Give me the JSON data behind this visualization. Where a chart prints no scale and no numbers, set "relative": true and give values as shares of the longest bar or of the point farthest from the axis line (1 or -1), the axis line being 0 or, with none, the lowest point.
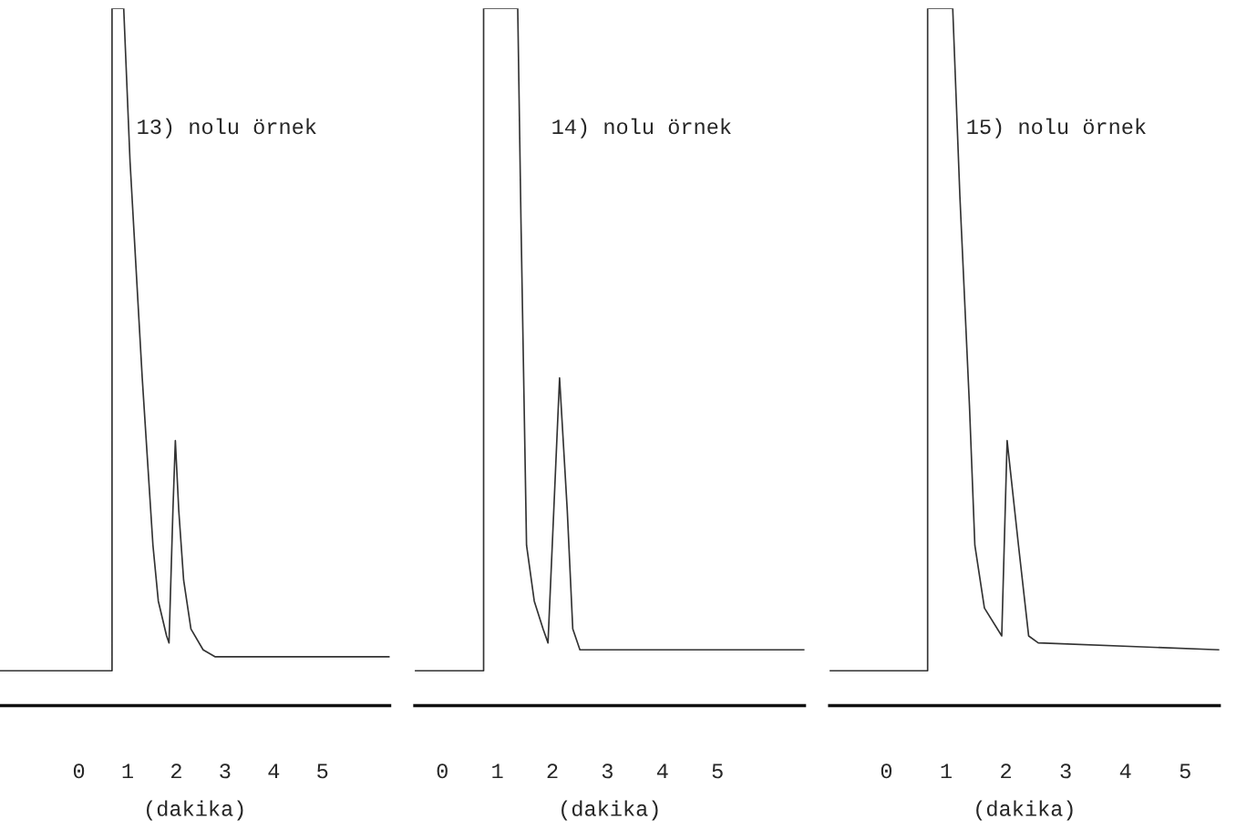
{
  "chart_data": [
    {
      "type": "line",
      "title": "13) nolu örnek",
      "xlabel": "(dakika)",
      "relative": true,
      "xlim": [
        -1.62,
        6.38
      ],
      "xticks": [
        0,
        1,
        2,
        3,
        4,
        5
      ],
      "tick_labels": "x",
      "grid": false,
      "legend": false,
      "series": [
        {
          "color": "#333333",
          "x": [
            -1.62,
            0.68,
            0.68,
            0.92,
            1.05,
            1.3,
            1.52,
            1.63,
            1.8,
            1.85,
            1.93,
            1.98,
            2.05,
            2.15,
            2.3,
            2.55,
            2.8,
            6.38
          ],
          "values": [
            0.05,
            0.05,
            1,
            1,
            0.78,
            0.47,
            0.23,
            0.15,
            0.1,
            0.09,
            0.28,
            0.38,
            0.28,
            0.18,
            0.11,
            0.08,
            0.07,
            0.07
          ]
        }
      ]
    },
    {
      "type": "line",
      "title": "14) nolu örnek",
      "xlabel": "(dakika)",
      "relative": true,
      "xlim": [
        -0.5,
        6.58
      ],
      "xticks": [
        0,
        1,
        2,
        3,
        4,
        5
      ],
      "tick_labels": "x",
      "grid": false,
      "legend": false,
      "series": [
        {
          "color": "#333333",
          "x": [
            -0.5,
            0.75,
            0.75,
            1.37,
            1.43,
            1.53,
            1.67,
            1.83,
            1.92,
            2.13,
            2.27,
            2.37,
            2.5,
            2.75,
            6.58
          ],
          "values": [
            0.05,
            0.05,
            1,
            1,
            0.69,
            0.23,
            0.15,
            0.11,
            0.09,
            0.47,
            0.28,
            0.11,
            0.08,
            0.08,
            0.08
          ]
        }
      ]
    },
    {
      "type": "line",
      "title": "15) nolu örnek",
      "xlabel": "(dakika)",
      "relative": true,
      "xlim": [
        -0.95,
        5.57
      ],
      "xticks": [
        0,
        1,
        2,
        3,
        4,
        5
      ],
      "tick_labels": "x",
      "grid": false,
      "legend": false,
      "series": [
        {
          "color": "#333333",
          "x": [
            -0.95,
            0.69,
            0.69,
            1.11,
            1.23,
            1.39,
            1.48,
            1.64,
            1.93,
            2.02,
            2.21,
            2.38,
            2.54,
            5.57
          ],
          "values": [
            0.05,
            0.05,
            1,
            1,
            0.73,
            0.43,
            0.23,
            0.14,
            0.1,
            0.38,
            0.23,
            0.1,
            0.09,
            0.08
          ]
        }
      ]
    }
  ]
}
